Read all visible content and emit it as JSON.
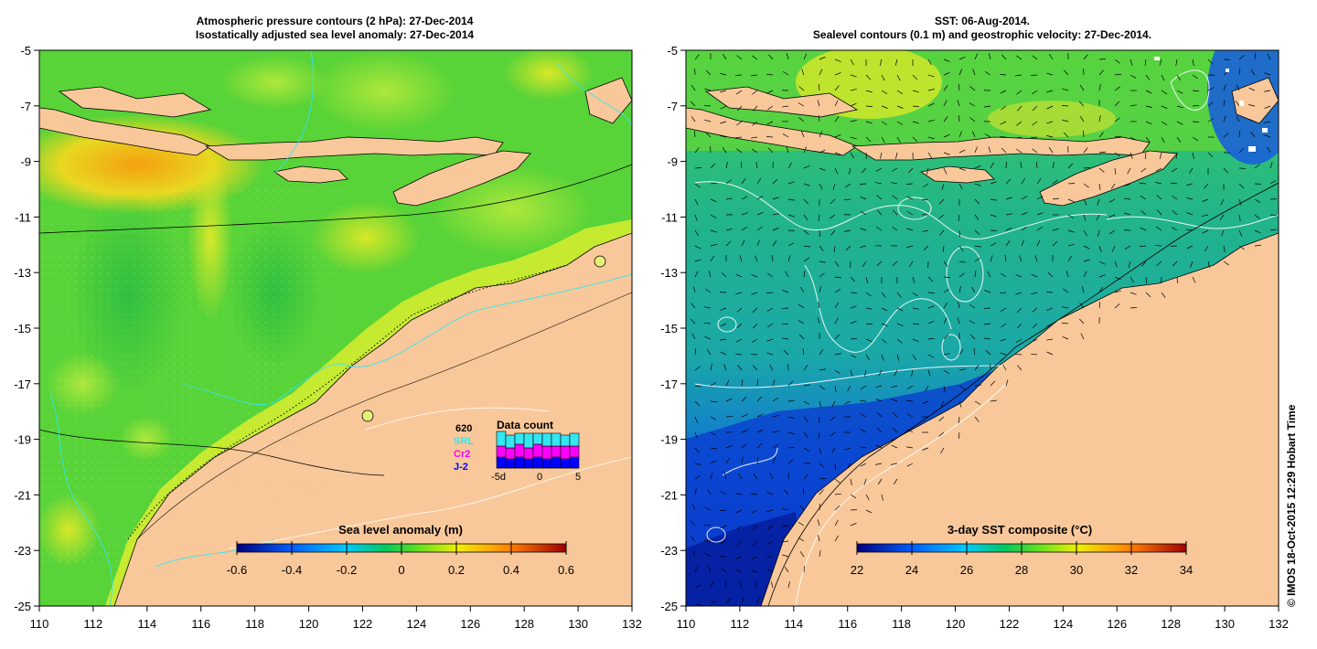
{
  "left_panel": {
    "title_line1": "Atmospheric pressure contours (2 hPa): 27-Dec-2014",
    "title_line2": "Isostatically adjusted sea level anomaly: 27-Dec-2014",
    "colorbar_label": "Sea level anomaly (m)",
    "colorbar_ticks": [
      "-0.6",
      "-0.4",
      "-0.2",
      "0",
      "0.2",
      "0.4",
      "0.6"
    ],
    "data_count": {
      "title": "Data count",
      "sources": [
        {
          "label": "620",
          "color": "#000000"
        },
        {
          "label": "SRL",
          "color": "#33e6f0"
        },
        {
          "label": "Cr2",
          "color": "#ff00ff"
        },
        {
          "label": "J-2",
          "color": "#0000ff"
        }
      ],
      "axis_ticks": [
        "-5d",
        "0",
        "5"
      ],
      "bars": [
        {
          "day": -5,
          "j2": 0.3,
          "cr2": 0.3,
          "srl": 0.4
        },
        {
          "day": -4,
          "j2": 0.25,
          "cr2": 0.3,
          "srl": 0.35
        },
        {
          "day": -3,
          "j2": 0.3,
          "cr2": 0.35,
          "srl": 0.3
        },
        {
          "day": -2,
          "j2": 0.25,
          "cr2": 0.3,
          "srl": 0.4
        },
        {
          "day": -1,
          "j2": 0.3,
          "cr2": 0.35,
          "srl": 0.3
        },
        {
          "day": 0,
          "j2": 0.25,
          "cr2": 0.35,
          "srl": 0.35
        },
        {
          "day": 1,
          "j2": 0.3,
          "cr2": 0.3,
          "srl": 0.35
        },
        {
          "day": 2,
          "j2": 0.25,
          "cr2": 0.35,
          "srl": 0.3
        },
        {
          "day": 3,
          "j2": 0.3,
          "cr2": 0.3,
          "srl": 0.35
        }
      ]
    }
  },
  "right_panel": {
    "title_line1": "SST: 06-Aug-2014.",
    "title_line2": "Sealevel contours (0.1 m) and geostrophic velocity: 27-Dec-2014.",
    "colorbar_label": "3-day SST composite (°C)",
    "colorbar_ticks": [
      "22",
      "24",
      "26",
      "28",
      "30",
      "32",
      "34"
    ]
  },
  "axes": {
    "lon_ticks": [
      "110",
      "112",
      "114",
      "116",
      "118",
      "120",
      "122",
      "124",
      "126",
      "128",
      "130",
      "132"
    ],
    "lat_ticks": [
      "-5",
      "-7",
      "-9",
      "-11",
      "-13",
      "-15",
      "-17",
      "-19",
      "-21",
      "-23",
      "-25"
    ],
    "lon_range": [
      110,
      132
    ],
    "lat_range": [
      -25,
      -5
    ]
  },
  "credit": "© IMOS 18-Oct-2015 12:29 Hobart Time",
  "colors": {
    "land": "#f9c89a",
    "sla_sea": "#58d338",
    "sst_sea": "#1fb07c",
    "sst_cold": "#0b3bd0"
  }
}
